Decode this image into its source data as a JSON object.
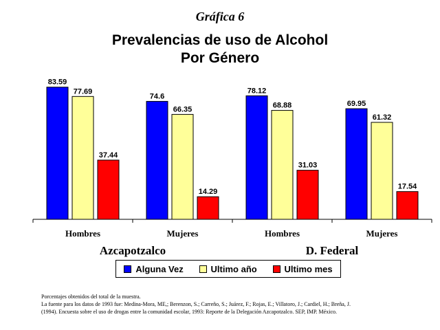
{
  "supertitle": "Gráfica 6",
  "title_line1": "Prevalencias de uso de Alcohol",
  "title_line2": "Por Género",
  "colors": {
    "alguna_vez": "#0000ff",
    "ultimo_anio": "#ffff99",
    "ultimo_mes": "#ff0000"
  },
  "chart_data": {
    "type": "bar",
    "categories": [
      "Hombres",
      "Mujeres",
      "Hombres",
      "Mujeres"
    ],
    "groups": [
      "Azcapotzalco",
      "D. Federal"
    ],
    "series": [
      {
        "name": "Alguna Vez",
        "values": [
          83.59,
          74.6,
          78.12,
          69.95
        ]
      },
      {
        "name": "Ultimo año",
        "values": [
          77.69,
          66.35,
          68.88,
          61.32
        ]
      },
      {
        "name": "Ultimo mes",
        "values": [
          37.44,
          14.29,
          31.03,
          17.54
        ]
      }
    ],
    "ylim": [
      0,
      90
    ],
    "grid": false,
    "legend_position": "bottom"
  },
  "footer": {
    "line1": "Porcentajes obtenidos del total de la muestra.",
    "line2": "La fuente para los datos de 1993 fue: Medina-Mora, ME,; Berenzon, S.; Carreño, S.; Juárez, F.; Rojas, E.; Villatoro, J.; Cardiel, H.; Breña, J.",
    "line3": "(1994). Encuesta sobre el uso de drogas entre la comunidad escolar, 1993: Reporte de la Delegación Azcapotzalco. SEP, IMP. México."
  }
}
